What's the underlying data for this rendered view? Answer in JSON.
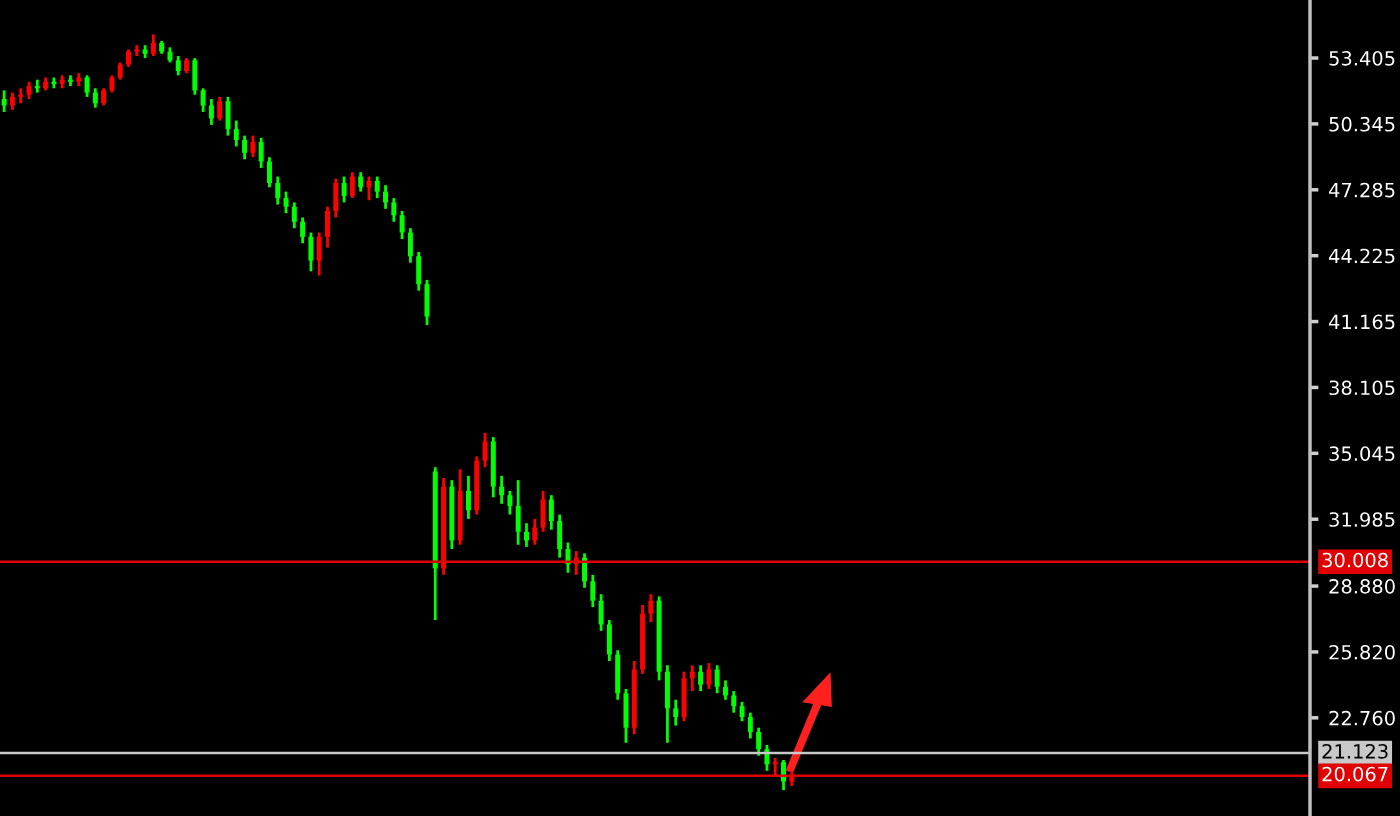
{
  "chart_data": {
    "type": "candlestick",
    "categories": [
      null,
      null,
      null,
      null,
      null,
      null,
      null,
      null,
      null,
      null,
      null,
      null,
      null,
      null,
      null,
      null,
      null,
      null,
      null,
      null,
      null,
      null,
      null,
      null,
      null,
      null,
      null,
      null,
      null,
      null,
      null,
      null,
      null,
      null,
      null,
      null,
      null,
      null,
      null,
      null,
      null,
      null,
      null,
      null,
      null,
      null,
      null,
      null,
      null,
      null,
      null,
      null,
      null,
      null,
      null,
      null,
      null,
      null,
      null,
      null,
      null,
      null,
      null,
      null,
      null,
      null,
      null,
      null,
      null,
      null,
      null,
      null,
      null,
      null,
      null,
      null,
      null,
      null,
      null,
      null,
      null,
      null,
      null,
      null,
      null,
      null,
      null,
      null,
      null,
      null,
      null,
      null,
      null,
      null,
      null,
      null,
      null,
      null,
      null,
      null,
      null,
      null,
      null,
      null,
      null,
      null,
      null,
      null,
      null,
      null,
      null,
      null,
      null,
      null,
      null,
      null,
      null,
      null,
      null,
      null,
      null,
      null,
      null,
      null,
      null,
      null,
      null,
      null,
      null,
      null,
      null,
      null,
      null,
      null,
      null,
      null,
      null,
      null,
      null,
      null,
      null,
      null,
      null,
      null,
      null,
      null,
      null,
      null,
      null,
      null,
      null,
      null,
      null,
      null,
      null,
      null,
      null,
      null
    ],
    "ohlc": [
      [
        51.5,
        51.9,
        50.9,
        51.2
      ],
      [
        51.2,
        51.8,
        51.0,
        51.6
      ],
      [
        51.6,
        52.0,
        51.3,
        51.7
      ],
      [
        51.7,
        52.3,
        51.5,
        52.1
      ],
      [
        52.1,
        52.4,
        51.8,
        52.0
      ],
      [
        52.0,
        52.5,
        51.9,
        52.3
      ],
      [
        52.3,
        52.5,
        52.0,
        52.2
      ],
      [
        52.2,
        52.6,
        52.0,
        52.4
      ],
      [
        52.4,
        52.6,
        52.1,
        52.3
      ],
      [
        52.3,
        52.7,
        52.1,
        52.5
      ],
      [
        52.5,
        52.6,
        51.6,
        51.8
      ],
      [
        51.8,
        52.0,
        51.1,
        51.3
      ],
      [
        51.3,
        52.0,
        51.2,
        51.9
      ],
      [
        51.9,
        52.6,
        51.8,
        52.5
      ],
      [
        52.5,
        53.2,
        52.4,
        53.1
      ],
      [
        53.1,
        53.8,
        53.0,
        53.7
      ],
      [
        53.7,
        54.0,
        53.5,
        53.8
      ],
      [
        53.8,
        54.0,
        53.4,
        53.6
      ],
      [
        53.6,
        54.5,
        53.5,
        54.1
      ],
      [
        54.1,
        54.2,
        53.6,
        53.7
      ],
      [
        53.7,
        53.9,
        53.2,
        53.3
      ],
      [
        53.3,
        53.5,
        52.6,
        52.8
      ],
      [
        52.8,
        53.4,
        52.7,
        53.3
      ],
      [
        53.3,
        53.4,
        51.7,
        51.9
      ],
      [
        51.9,
        52.0,
        50.9,
        51.2
      ],
      [
        51.2,
        51.5,
        50.3,
        50.6
      ],
      [
        50.6,
        51.6,
        50.5,
        51.4
      ],
      [
        51.4,
        51.6,
        49.8,
        50.1
      ],
      [
        50.1,
        50.5,
        49.3,
        49.6
      ],
      [
        49.6,
        49.8,
        48.7,
        49.0
      ],
      [
        49.0,
        49.8,
        48.8,
        49.5
      ],
      [
        49.5,
        49.7,
        48.3,
        48.6
      ],
      [
        48.6,
        48.8,
        47.4,
        47.6
      ],
      [
        47.6,
        47.9,
        46.6,
        46.9
      ],
      [
        46.9,
        47.2,
        46.2,
        46.5
      ],
      [
        46.5,
        46.7,
        45.5,
        45.8
      ],
      [
        45.8,
        46.0,
        44.8,
        45.1
      ],
      [
        45.1,
        45.3,
        43.5,
        44.0
      ],
      [
        44.0,
        45.3,
        43.3,
        45.1
      ],
      [
        45.1,
        46.5,
        44.6,
        46.3
      ],
      [
        46.3,
        47.8,
        46.0,
        47.6
      ],
      [
        47.6,
        47.9,
        46.7,
        47.0
      ],
      [
        47.0,
        48.1,
        46.9,
        47.9
      ],
      [
        47.9,
        48.1,
        47.2,
        47.4
      ],
      [
        47.4,
        47.9,
        46.8,
        47.7
      ],
      [
        47.7,
        47.9,
        46.9,
        47.2
      ],
      [
        47.2,
        47.5,
        46.4,
        46.7
      ],
      [
        46.7,
        46.9,
        45.8,
        46.1
      ],
      [
        46.1,
        46.3,
        45.0,
        45.3
      ],
      [
        45.3,
        45.5,
        43.9,
        44.2
      ],
      [
        44.2,
        44.4,
        42.6,
        42.9
      ],
      [
        42.9,
        43.1,
        41.0,
        41.4
      ],
      [
        34.2,
        34.4,
        27.3,
        29.7
      ],
      [
        29.7,
        33.9,
        29.4,
        33.5
      ],
      [
        33.5,
        33.8,
        30.6,
        31.0
      ],
      [
        31.0,
        34.3,
        30.8,
        33.3
      ],
      [
        33.3,
        34.0,
        32.0,
        32.4
      ],
      [
        32.4,
        34.9,
        32.2,
        34.7
      ],
      [
        34.7,
        36.0,
        34.4,
        35.6
      ],
      [
        35.6,
        35.8,
        33.0,
        33.5
      ],
      [
        33.5,
        34.0,
        32.7,
        33.1
      ],
      [
        33.1,
        33.3,
        32.2,
        32.6
      ],
      [
        32.6,
        33.8,
        30.8,
        31.4
      ],
      [
        31.4,
        31.8,
        30.7,
        31.0
      ],
      [
        31.0,
        32.0,
        30.8,
        31.6
      ],
      [
        31.6,
        33.3,
        31.4,
        32.9
      ],
      [
        32.9,
        33.1,
        31.5,
        31.9
      ],
      [
        31.9,
        32.2,
        30.2,
        30.6
      ],
      [
        30.6,
        30.9,
        29.5,
        29.9
      ],
      [
        29.9,
        30.5,
        29.4,
        30.2
      ],
      [
        30.2,
        30.4,
        28.8,
        29.1
      ],
      [
        29.1,
        29.4,
        27.9,
        28.2
      ],
      [
        28.2,
        28.5,
        26.8,
        27.1
      ],
      [
        27.1,
        27.3,
        25.4,
        25.7
      ],
      [
        25.7,
        25.9,
        23.6,
        23.9
      ],
      [
        23.9,
        24.1,
        21.6,
        22.3
      ],
      [
        22.3,
        25.4,
        22.0,
        25.0
      ],
      [
        25.0,
        28.0,
        24.8,
        27.6
      ],
      [
        27.6,
        28.5,
        27.2,
        28.2
      ],
      [
        28.2,
        28.4,
        24.5,
        24.9
      ],
      [
        24.9,
        25.2,
        21.6,
        23.2
      ],
      [
        23.2,
        23.6,
        22.4,
        22.8
      ],
      [
        22.8,
        24.9,
        22.6,
        24.6
      ],
      [
        24.6,
        25.2,
        24.0,
        24.9
      ],
      [
        24.9,
        25.2,
        24.0,
        24.3
      ],
      [
        24.3,
        25.3,
        24.1,
        25.0
      ],
      [
        25.0,
        25.2,
        23.9,
        24.2
      ],
      [
        24.2,
        24.5,
        23.6,
        23.8
      ],
      [
        23.8,
        24.0,
        23.0,
        23.3
      ],
      [
        23.3,
        23.5,
        22.6,
        22.8
      ],
      [
        22.8,
        23.0,
        21.8,
        22.1
      ],
      [
        22.1,
        22.3,
        21.0,
        21.3
      ],
      [
        21.3,
        21.5,
        20.3,
        20.6
      ],
      [
        20.6,
        20.9,
        20.1,
        20.7
      ],
      [
        20.7,
        20.8,
        19.4,
        19.8
      ],
      [
        19.8,
        20.3,
        19.6,
        20.1
      ],
      null,
      null,
      null,
      null,
      null,
      null,
      null,
      null,
      null,
      null,
      null,
      null,
      null,
      null,
      null,
      null,
      null,
      null,
      null,
      null,
      null,
      null,
      null,
      null,
      null,
      null,
      null,
      null,
      null,
      null,
      null,
      null,
      null,
      null,
      null,
      null,
      null,
      null,
      null,
      null,
      null,
      null,
      null,
      null,
      null,
      null,
      null,
      null,
      null,
      null,
      null,
      null,
      null,
      null,
      null,
      null,
      null,
      null,
      null,
      null,
      null,
      null
    ],
    "colors": [
      "#00ff00",
      "#ff0000",
      "#ff0000",
      "#ff0000",
      "#00ff00",
      "#ff0000",
      "#00ff00",
      "#ff0000",
      "#00ff00",
      "#ff0000",
      "#00ff00",
      "#00ff00",
      "#ff0000",
      "#ff0000",
      "#ff0000",
      "#ff0000",
      "#ff0000",
      "#00ff00",
      "#ff0000",
      "#00ff00",
      "#00ff00",
      "#00ff00",
      "#ff0000",
      "#00ff00",
      "#00ff00",
      "#00ff00",
      "#ff0000",
      "#00ff00",
      "#00ff00",
      "#00ff00",
      "#ff0000",
      "#00ff00",
      "#00ff00",
      "#00ff00",
      "#00ff00",
      "#00ff00",
      "#00ff00",
      "#00ff00",
      "#ff0000",
      "#ff0000",
      "#ff0000",
      "#00ff00",
      "#ff0000",
      "#00ff00",
      "#ff0000",
      "#00ff00",
      "#00ff00",
      "#00ff00",
      "#00ff00",
      "#00ff00",
      "#00ff00",
      "#00ff00",
      "#00ff00",
      "#ff0000",
      "#00ff00",
      "#ff0000",
      "#00ff00",
      "#ff0000",
      "#ff0000",
      "#00ff00",
      "#00ff00",
      "#00ff00",
      "#00ff00",
      "#00ff00",
      "#ff0000",
      "#ff0000",
      "#00ff00",
      "#00ff00",
      "#00ff00",
      "#ff0000",
      "#00ff00",
      "#00ff00",
      "#00ff00",
      "#00ff00",
      "#00ff00",
      "#00ff00",
      "#ff0000",
      "#ff0000",
      "#ff0000",
      "#00ff00",
      "#00ff00",
      "#00ff00",
      "#ff0000",
      "#ff0000",
      "#00ff00",
      "#ff0000",
      "#00ff00",
      "#00ff00",
      "#00ff00",
      "#00ff00",
      "#00ff00",
      "#00ff00",
      "#00ff00",
      "#ff0000",
      "#00ff00",
      "#ff0000",
      null,
      null,
      null,
      null,
      null,
      null,
      null,
      null,
      null,
      null,
      null,
      null,
      null,
      null,
      null,
      null,
      null,
      null,
      null,
      null,
      null,
      null,
      null,
      null,
      null,
      null,
      null,
      null,
      null,
      null,
      null,
      null,
      null,
      null,
      null,
      null,
      null,
      null,
      null,
      null,
      null,
      null,
      null,
      null,
      null,
      null,
      null,
      null,
      null,
      null,
      null,
      null,
      null,
      null,
      null,
      null,
      null,
      null,
      null,
      null,
      null,
      null
    ],
    "ylim": [
      18.2,
      56.1
    ],
    "yticks": [
      {
        "value": 22.76,
        "label": "22.760"
      },
      {
        "value": 25.82,
        "label": "25.820"
      },
      {
        "value": 28.88,
        "label": "28.880"
      },
      31.985,
      35.045,
      38.105,
      41.165,
      44.225,
      47.285,
      50.345,
      53.405
    ],
    "ref_lines": [
      {
        "axis": "y",
        "value": 30.008,
        "label": "30.008",
        "color": "#e00000"
      },
      {
        "axis": "y",
        "value": 21.123,
        "label": "21.123",
        "color": "#c8c8c8"
      },
      {
        "axis": "y",
        "value": 20.067,
        "label": "20.067",
        "color": "#e00000"
      }
    ],
    "grid": false,
    "legend": false
  }
}
